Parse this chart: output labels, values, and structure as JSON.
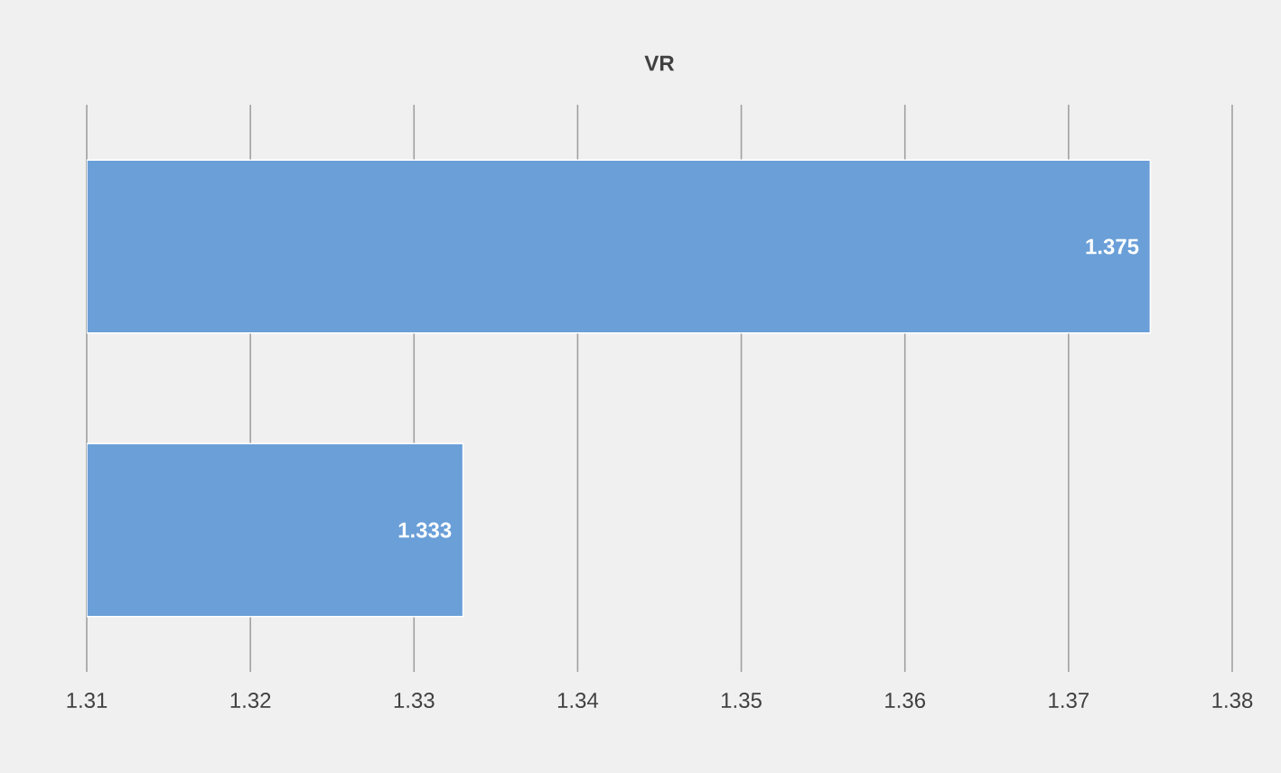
{
  "chart_data": {
    "type": "bar",
    "orientation": "horizontal",
    "title": "VR",
    "categories": [
      null,
      null
    ],
    "values": [
      1.375,
      1.333
    ],
    "color": "#6a9fd8",
    "xlim": [
      1.31,
      1.38
    ],
    "xticks": [
      1.31,
      1.32,
      1.33,
      1.34,
      1.35,
      1.36,
      1.37,
      1.38
    ],
    "grid": "x",
    "data_labels": true
  }
}
